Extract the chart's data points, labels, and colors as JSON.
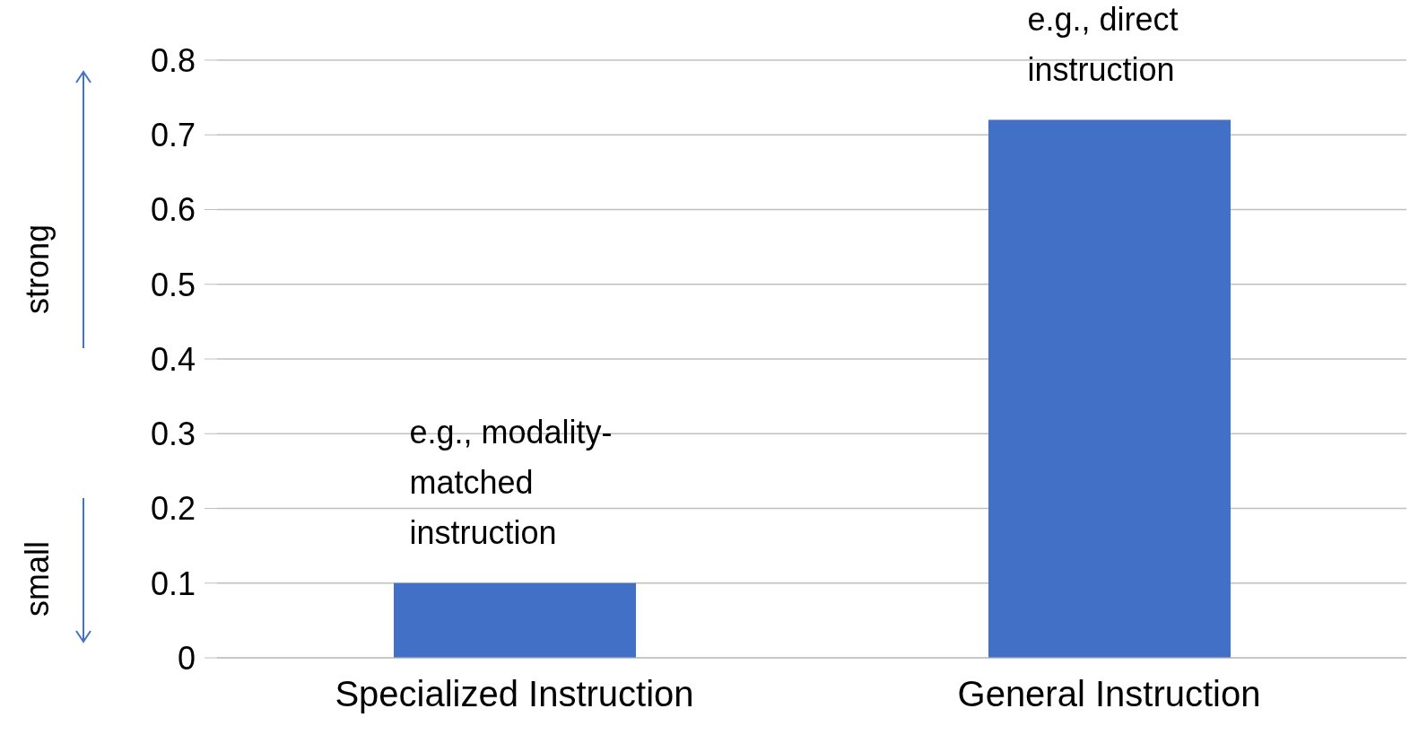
{
  "chart_data": {
    "type": "bar",
    "categories": [
      "Specialized Instruction",
      "General Instruction"
    ],
    "values": [
      0.1,
      0.72
    ],
    "color": "#4170c6",
    "ylim": [
      0,
      0.8
    ],
    "yticks": [
      0,
      0.1,
      0.2,
      0.3,
      0.4,
      0.5,
      0.6,
      0.7,
      0.8
    ],
    "grid": "y",
    "legend": false,
    "annotations": [
      {
        "text": "e.g., modality-matched instruction",
        "x": "Specialized Instruction",
        "y": 0.1
      },
      {
        "text": "e.g., direct instruction",
        "x": "General Instruction",
        "y": 0.72
      },
      "strong",
      "small"
    ]
  }
}
